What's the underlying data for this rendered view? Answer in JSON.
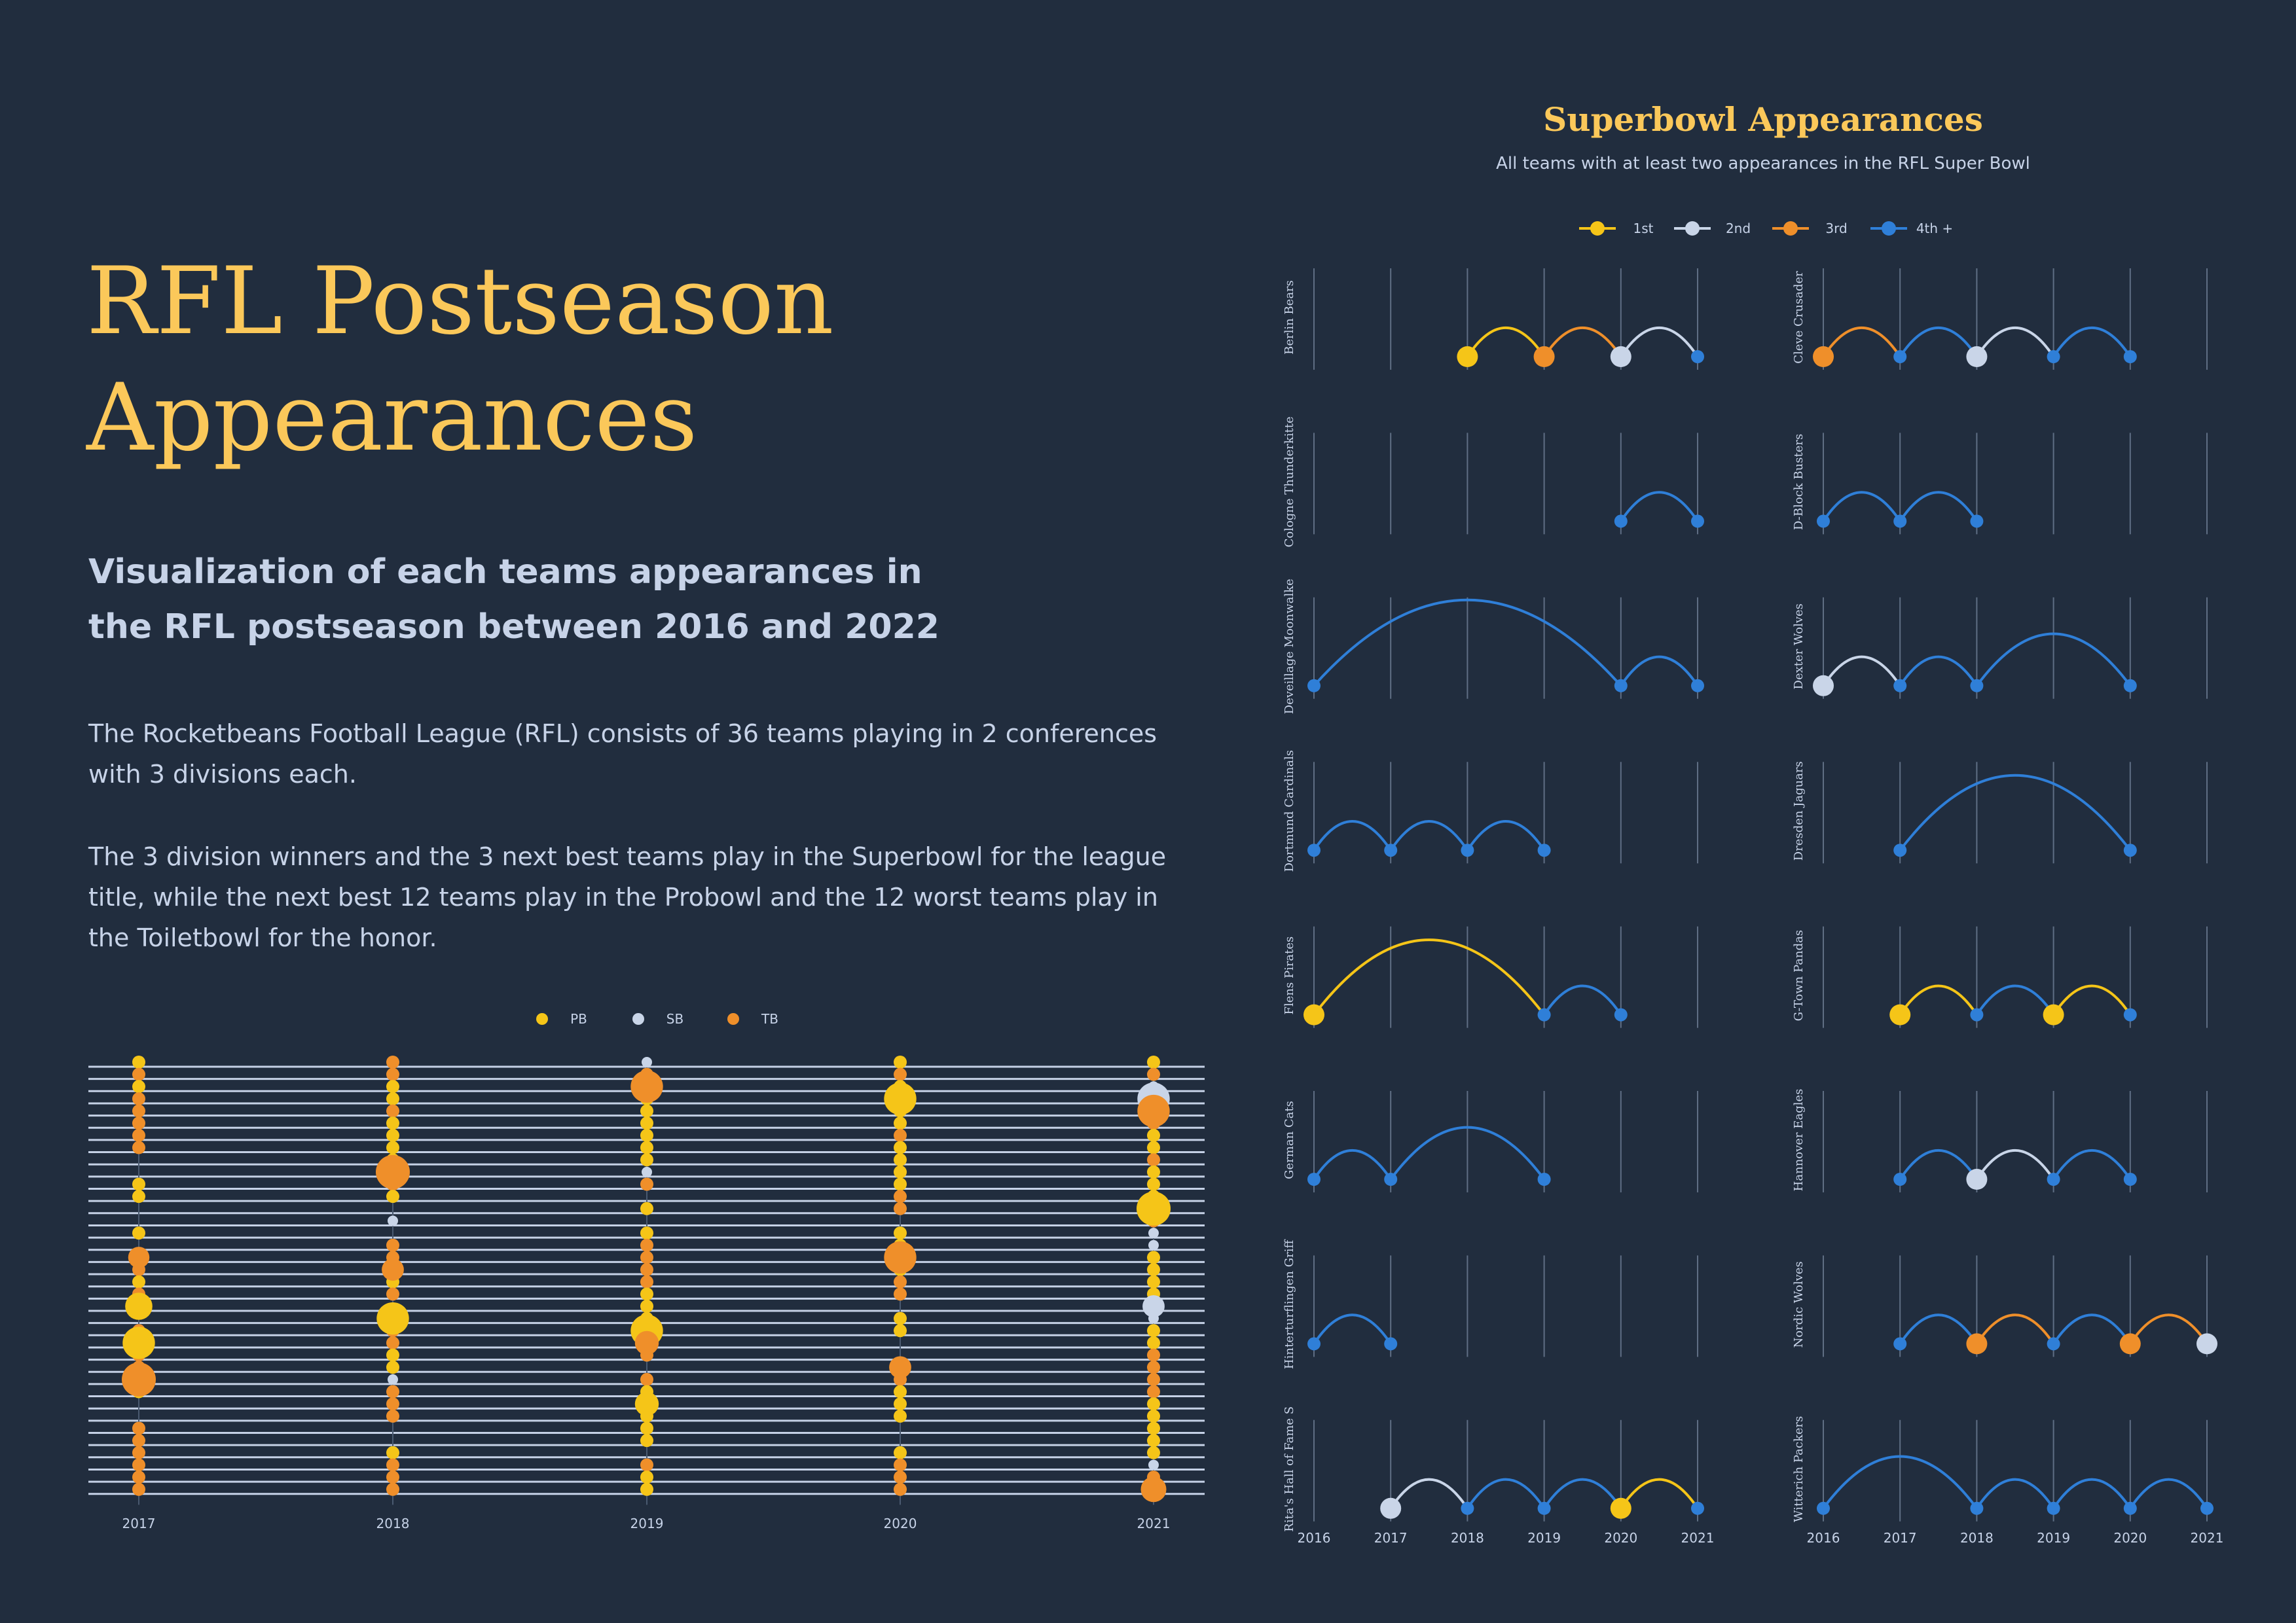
{
  "title": "RFL Postseason Appearances",
  "subtitle": "Visualization of each teams appearances in the RFL postseason between 2016 and 2022",
  "paragraphs": [
    "The Rocketbeans Football League (RFL) consists of 36 teams playing in 2 conferences with 3 divisions each.",
    "The 3 division winners and the 3 next best teams play in the Superbowl for the league title, while the next best 12 teams play in the Probowl and the 12 worst teams play in the Toiletbowl for the honor."
  ],
  "colors": {
    "background": "#212d3e",
    "accent": "#fbc85a",
    "text": "#c7d3e8",
    "PB": "#f5c518",
    "SB": "#c9d5e8",
    "TB": "#ef8f2a",
    "first": "#f5c518",
    "second": "#c9d5e8",
    "third": "#ef8f2a",
    "fourth_plus": "#2f7fd8"
  },
  "chart_data": [
    {
      "type": "scatter",
      "legend": [
        {
          "key": "PB",
          "label": "PB"
        },
        {
          "key": "SB",
          "label": "SB"
        },
        {
          "key": "TB",
          "label": "TB"
        }
      ],
      "legend_position": "top-center",
      "x": [
        "2017",
        "2018",
        "2019",
        "2020",
        "2021"
      ],
      "rows": 36,
      "grid": true,
      "columns": [
        {
          "year": "2017",
          "cells": [
            "PB",
            "TB",
            "PB",
            "TB",
            "TB",
            "TB",
            "TB",
            "TB",
            null,
            null,
            "PB",
            "PB",
            null,
            null,
            "PB",
            null,
            "PB",
            "TB",
            "PB",
            "TB",
            null,
            null,
            "TB",
            "PB",
            "TB",
            "TB",
            "PB",
            "PB",
            null,
            null,
            "TB",
            "TB",
            "TB",
            "TB",
            "TB",
            "TB"
          ],
          "big": [
            {
              "row": 16,
              "cat": "TB",
              "r": 1.25
            },
            {
              "row": 20,
              "cat": "PB",
              "r": 1.6
            },
            {
              "row": 23,
              "cat": "PB",
              "r": 1.9
            },
            {
              "row": 26,
              "cat": "TB",
              "r": 2.0
            }
          ]
        },
        {
          "year": "2018",
          "cells": [
            "TB",
            "TB",
            "PB",
            "PB",
            "TB",
            "PB",
            "PB",
            "PB",
            "PB",
            "TB",
            "TB",
            "PB",
            null,
            "SB",
            null,
            "TB",
            "TB",
            "TB",
            "PB",
            "TB",
            null,
            "PB",
            "TB",
            "TB",
            "PB",
            "PB",
            "SB",
            "TB",
            "TB",
            "TB",
            null,
            null,
            "PB",
            "TB",
            "TB",
            "TB"
          ],
          "big": [
            {
              "row": 9,
              "cat": "TB",
              "r": 2.0
            },
            {
              "row": 17,
              "cat": "TB",
              "r": 1.3
            },
            {
              "row": 21,
              "cat": "PB",
              "r": 1.9
            }
          ]
        },
        {
          "year": "2019",
          "cells": [
            "SB",
            "TB",
            "TB",
            "PB",
            "PB",
            "PB",
            "PB",
            "PB",
            "PB",
            "SB",
            "TB",
            null,
            "PB",
            null,
            "PB",
            "TB",
            "TB",
            "TB",
            "TB",
            "PB",
            "PB",
            "PB",
            "PB",
            "PB",
            "TB",
            null,
            "TB",
            "PB",
            "PB",
            "PB",
            "PB",
            "PB",
            null,
            "TB",
            "PB",
            "PB"
          ],
          "big": [
            {
              "row": 2,
              "cat": "TB",
              "r": 1.9
            },
            {
              "row": 22,
              "cat": "PB",
              "r": 1.9
            },
            {
              "row": 23,
              "cat": "TB",
              "r": 1.4
            },
            {
              "row": 28,
              "cat": "PB",
              "r": 1.4
            }
          ]
        },
        {
          "year": "2020",
          "cells": [
            "PB",
            "TB",
            "PB",
            "PB",
            "PB",
            "PB",
            "TB",
            "PB",
            "PB",
            "PB",
            "PB",
            "TB",
            "TB",
            null,
            "PB",
            "PB",
            "PB",
            "PB",
            "TB",
            "TB",
            null,
            "PB",
            "PB",
            null,
            null,
            "TB",
            "TB",
            "PB",
            "PB",
            "PB",
            null,
            null,
            "PB",
            "TB",
            "TB",
            "TB"
          ],
          "big": [
            {
              "row": 3,
              "cat": "PB",
              "r": 1.9
            },
            {
              "row": 16,
              "cat": "TB",
              "r": 1.9
            },
            {
              "row": 25,
              "cat": "TB",
              "r": 1.3
            }
          ]
        },
        {
          "year": "2021",
          "cells": [
            "PB",
            "TB",
            "SB",
            "SB",
            "TB",
            "TB",
            "PB",
            "PB",
            "TB",
            "PB",
            "PB",
            "PB",
            "PB",
            "TB",
            "SB",
            "SB",
            "PB",
            "PB",
            "PB",
            "PB",
            "SB",
            "SB",
            "PB",
            "PB",
            "TB",
            "TB",
            "TB",
            "TB",
            "PB",
            "PB",
            "PB",
            "PB",
            "PB",
            "SB",
            "TB",
            "TB"
          ],
          "big": [
            {
              "row": 3,
              "cat": "SB",
              "r": 1.9
            },
            {
              "row": 4,
              "cat": "TB",
              "r": 1.9
            },
            {
              "row": 12,
              "cat": "PB",
              "r": 2.0
            },
            {
              "row": 20,
              "cat": "SB",
              "r": 1.3
            },
            {
              "row": 35,
              "cat": "TB",
              "r": 1.5
            }
          ]
        }
      ]
    },
    {
      "type": "line",
      "title": "Superbowl Appearances",
      "subtitle": "All teams with at least two appearances in the RFL Super Bowl",
      "legend": [
        {
          "key": "1",
          "label": "1st"
        },
        {
          "key": "2",
          "label": "2nd"
        },
        {
          "key": "3",
          "label": "3rd"
        },
        {
          "key": "4",
          "label": "4th +"
        }
      ],
      "legend_position": "top-center",
      "x": [
        2016,
        2017,
        2018,
        2019,
        2020,
        2021
      ],
      "grid": true,
      "teams": [
        {
          "name": "Berlin Bears",
          "points": [
            {
              "year": 2018,
              "place": 1
            },
            {
              "year": 2019,
              "place": 3
            },
            {
              "year": 2020,
              "place": 2
            },
            {
              "year": 2021,
              "place": 4
            }
          ]
        },
        {
          "name": "Cleve Crusader",
          "points": [
            {
              "year": 2016,
              "place": 3
            },
            {
              "year": 2017,
              "place": 4
            },
            {
              "year": 2018,
              "place": 2
            },
            {
              "year": 2019,
              "place": 4
            },
            {
              "year": 2020,
              "place": 4
            }
          ]
        },
        {
          "name": "Cologne Thunderkitte",
          "points": [
            {
              "year": 2020,
              "place": 4
            },
            {
              "year": 2021,
              "place": 4
            }
          ]
        },
        {
          "name": "D-Block Busters",
          "points": [
            {
              "year": 2016,
              "place": 4
            },
            {
              "year": 2017,
              "place": 4
            },
            {
              "year": 2018,
              "place": 4
            }
          ]
        },
        {
          "name": "Deveillage Moonwalke",
          "points": [
            {
              "year": 2016,
              "place": 4
            },
            {
              "year": 2020,
              "place": 4
            },
            {
              "year": 2021,
              "place": 4
            }
          ]
        },
        {
          "name": "Dexter Wolves",
          "points": [
            {
              "year": 2016,
              "place": 2
            },
            {
              "year": 2017,
              "place": 4
            },
            {
              "year": 2018,
              "place": 4
            },
            {
              "year": 2020,
              "place": 4
            }
          ]
        },
        {
          "name": "Dortmund Cardinals",
          "points": [
            {
              "year": 2016,
              "place": 4
            },
            {
              "year": 2017,
              "place": 4
            },
            {
              "year": 2018,
              "place": 4
            },
            {
              "year": 2019,
              "place": 4
            }
          ]
        },
        {
          "name": "Dresden Jaguars",
          "points": [
            {
              "year": 2017,
              "place": 4
            },
            {
              "year": 2020,
              "place": 4
            }
          ]
        },
        {
          "name": "Flens Pirates",
          "points": [
            {
              "year": 2016,
              "place": 1
            },
            {
              "year": 2019,
              "place": 4
            },
            {
              "year": 2020,
              "place": 4
            }
          ]
        },
        {
          "name": "G-Town Pandas",
          "points": [
            {
              "year": 2017,
              "place": 1
            },
            {
              "year": 2018,
              "place": 4
            },
            {
              "year": 2019,
              "place": 1
            },
            {
              "year": 2020,
              "place": 4
            }
          ]
        },
        {
          "name": "German Cats",
          "points": [
            {
              "year": 2016,
              "place": 4
            },
            {
              "year": 2017,
              "place": 4
            },
            {
              "year": 2019,
              "place": 4
            }
          ]
        },
        {
          "name": "Hannover Eagles",
          "points": [
            {
              "year": 2017,
              "place": 4
            },
            {
              "year": 2018,
              "place": 2
            },
            {
              "year": 2019,
              "place": 4
            },
            {
              "year": 2020,
              "place": 4
            }
          ]
        },
        {
          "name": "Hinterturflingen Griff",
          "points": [
            {
              "year": 2016,
              "place": 4
            },
            {
              "year": 2017,
              "place": 4
            }
          ]
        },
        {
          "name": "Nordic Wolves",
          "points": [
            {
              "year": 2017,
              "place": 4
            },
            {
              "year": 2018,
              "place": 3
            },
            {
              "year": 2019,
              "place": 4
            },
            {
              "year": 2020,
              "place": 3
            },
            {
              "year": 2021,
              "place": 2
            }
          ]
        },
        {
          "name": "Rita's Hall of Fame S",
          "points": [
            {
              "year": 2017,
              "place": 2
            },
            {
              "year": 2018,
              "place": 4
            },
            {
              "year": 2019,
              "place": 4
            },
            {
              "year": 2020,
              "place": 1
            },
            {
              "year": 2021,
              "place": 4
            }
          ]
        },
        {
          "name": "Witterich Packers",
          "points": [
            {
              "year": 2016,
              "place": 4
            },
            {
              "year": 2018,
              "place": 4
            },
            {
              "year": 2019,
              "place": 4
            },
            {
              "year": 2020,
              "place": 4
            },
            {
              "year": 2021,
              "place": 4
            }
          ]
        }
      ]
    }
  ]
}
